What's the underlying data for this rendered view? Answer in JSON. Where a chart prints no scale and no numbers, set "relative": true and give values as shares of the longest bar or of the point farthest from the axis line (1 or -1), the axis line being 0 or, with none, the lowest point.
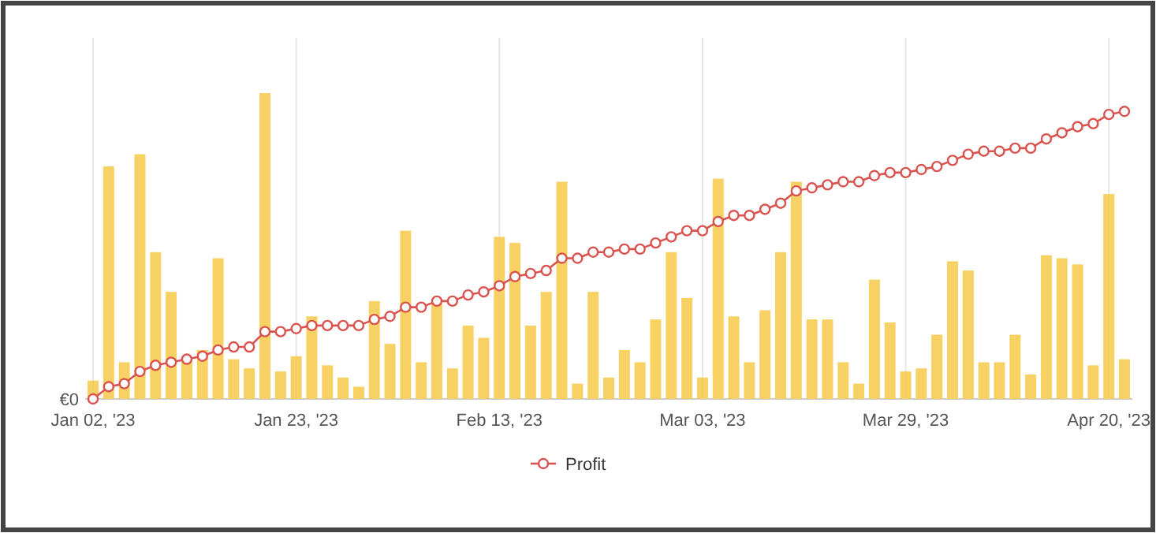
{
  "chart_data": {
    "type": "bar",
    "relative": true,
    "categories": [
      "Jan 02, '23",
      null,
      null,
      null,
      null,
      null,
      null,
      null,
      null,
      null,
      null,
      null,
      null,
      "Jan 23, '23",
      null,
      null,
      null,
      null,
      null,
      null,
      null,
      null,
      null,
      null,
      null,
      null,
      "Feb 13, '23",
      null,
      null,
      null,
      null,
      null,
      null,
      null,
      null,
      null,
      null,
      null,
      null,
      "Mar 03, '23",
      null,
      null,
      null,
      null,
      null,
      null,
      null,
      null,
      null,
      null,
      null,
      null,
      "Mar 29, '23",
      null,
      null,
      null,
      null,
      null,
      null,
      null,
      null,
      null,
      null,
      null,
      null,
      "Apr 20, '23",
      null
    ],
    "series": [
      {
        "color": "#f7c94a",
        "values": [
          0.06,
          0.76,
          0.12,
          0.8,
          0.48,
          0.35,
          0.13,
          0.16,
          0.46,
          0.13,
          0.1,
          1,
          0.09,
          0.14,
          0.27,
          0.11,
          0.07,
          0.04,
          0.32,
          0.18,
          0.55,
          0.12,
          0.31,
          0.1,
          0.24,
          0.2,
          0.53,
          0.51,
          0.24,
          0.35,
          0.71,
          0.05,
          0.35,
          0.07,
          0.16,
          0.12,
          0.26,
          0.48,
          0.33,
          0.07,
          0.72,
          0.27,
          0.12,
          0.29,
          0.48,
          0.71,
          0.26,
          0.26,
          0.12,
          0.05,
          0.39,
          0.25,
          0.09,
          0.1,
          0.21,
          0.45,
          0.42,
          0.12,
          0.12,
          0.21,
          0.08,
          0.47,
          0.46,
          0.44,
          0.11,
          0.67,
          0.13
        ]
      },
      {
        "type": "line",
        "name": "Profit",
        "color": "#d9534f",
        "values": [
          0.0,
          0.04,
          0.05,
          0.09,
          0.11,
          0.12,
          0.13,
          0.14,
          0.16,
          0.17,
          0.17,
          0.22,
          0.22,
          0.23,
          0.24,
          0.24,
          0.24,
          0.24,
          0.26,
          0.27,
          0.3,
          0.3,
          0.32,
          0.32,
          0.34,
          0.35,
          0.37,
          0.4,
          0.41,
          0.42,
          0.46,
          0.46,
          0.48,
          0.48,
          0.49,
          0.49,
          0.51,
          0.53,
          0.55,
          0.55,
          0.58,
          0.6,
          0.6,
          0.62,
          0.64,
          0.68,
          0.69,
          0.7,
          0.71,
          0.71,
          0.73,
          0.74,
          0.74,
          0.75,
          0.76,
          0.78,
          0.8,
          0.81,
          0.81,
          0.82,
          0.82,
          0.85,
          0.87,
          0.89,
          0.9,
          0.93,
          0.94
        ]
      }
    ],
    "annotations": [
      "€0"
    ],
    "grid": "x",
    "legend": "bottom",
    "marker": "circle",
    "line_style": "solid"
  }
}
